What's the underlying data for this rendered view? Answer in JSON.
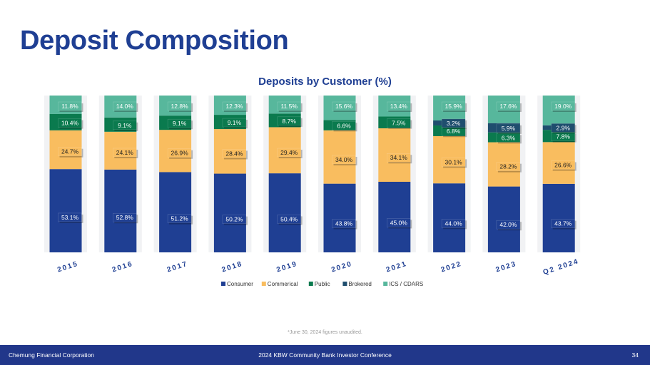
{
  "title": "Deposit Composition",
  "chart_data": {
    "type": "bar",
    "stacked": true,
    "title": "Deposits by Customer (%)",
    "categories": [
      "2015",
      "2016",
      "2017",
      "2018",
      "2019",
      "2020",
      "2021",
      "2022",
      "2023",
      "Q2 2024"
    ],
    "series": [
      {
        "name": "Consumer",
        "color": "#1f3f93",
        "values": [
          53.1,
          52.8,
          51.2,
          50.2,
          50.4,
          43.8,
          45.0,
          44.0,
          42.0,
          43.7
        ],
        "labels": [
          "53.1%",
          "52.8%",
          "51.2%",
          "50.2%",
          "50.4%",
          "43.8%",
          "45.0%",
          "44.0%",
          "42.0%",
          "43.7%"
        ]
      },
      {
        "name": "Commerical",
        "color": "#f9bd5f",
        "values": [
          24.7,
          24.1,
          26.9,
          28.4,
          29.4,
          34.0,
          34.1,
          30.1,
          28.2,
          26.6
        ],
        "labels": [
          "24.7%",
          "24.1%",
          "26.9%",
          "28.4%",
          "29.4%",
          "34.0%",
          "34.1%",
          "30.1%",
          "28.2%",
          "26.6%"
        ]
      },
      {
        "name": "Public",
        "color": "#0a7a4e",
        "values": [
          10.4,
          9.1,
          9.1,
          9.1,
          8.7,
          6.6,
          7.5,
          6.8,
          6.3,
          7.8
        ],
        "labels": [
          "10.4%",
          "9.1%",
          "9.1%",
          "9.1%",
          "8.7%",
          "6.6%",
          "7.5%",
          "6.8%",
          "6.3%",
          "7.8%"
        ]
      },
      {
        "name": "Brokered",
        "color": "#1f4e6e",
        "values": [
          0,
          0,
          0,
          0,
          0,
          0,
          0,
          3.2,
          5.9,
          2.9
        ],
        "labels": [
          "",
          "",
          "",
          "",
          "",
          "",
          "",
          "3.2%",
          "5.9%",
          "2.9%"
        ]
      },
      {
        "name": "ICS / CDARS",
        "color": "#57b79c",
        "values": [
          11.8,
          14.0,
          12.8,
          12.3,
          11.5,
          15.6,
          13.4,
          15.9,
          17.6,
          19.0
        ],
        "labels": [
          "11.8%",
          "14.0%",
          "12.8%",
          "12.3%",
          "11.5%",
          "15.6%",
          "13.4%",
          "15.9%",
          "17.6%",
          "19.0%"
        ]
      }
    ],
    "ylim": [
      0,
      100
    ],
    "legend": "bottom"
  },
  "footnote": "*June 30, 2024 figures unaudited.",
  "footer": {
    "company": "Chemung Financial Corporation",
    "event": "2024 KBW Community Bank Investor Conference",
    "page": "34"
  }
}
